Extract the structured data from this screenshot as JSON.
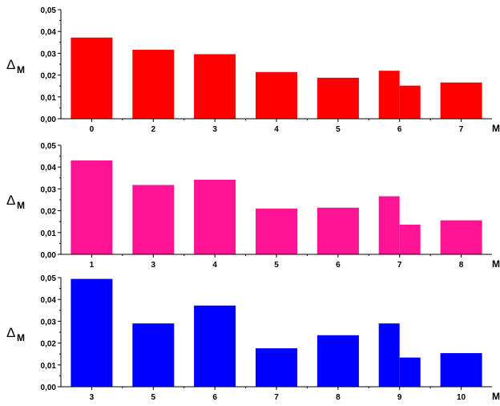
{
  "chart_data": [
    {
      "type": "bar",
      "color": "#ff0000",
      "ylabel": "Δ",
      "ylabel_sub": "M",
      "xlabel": "M",
      "ylim": [
        0,
        0.05
      ],
      "yticks": [
        "0,00",
        "0,01",
        "0,02",
        "0,03",
        "0,04",
        "0,05"
      ],
      "categories": [
        "0",
        "2",
        "3",
        "4",
        "5",
        "6",
        "7"
      ],
      "bars": [
        {
          "cat": "0",
          "value": 0.0372
        },
        {
          "cat": "2",
          "value": 0.0316
        },
        {
          "cat": "3",
          "value": 0.0296
        },
        {
          "cat": "4",
          "value": 0.0214
        },
        {
          "cat": "5",
          "value": 0.0188
        },
        {
          "cat": "6",
          "value": 0.022,
          "part": "left"
        },
        {
          "cat": "6",
          "value": 0.0152,
          "part": "right"
        },
        {
          "cat": "7",
          "value": 0.0166
        }
      ]
    },
    {
      "type": "bar",
      "color": "#ff1493",
      "ylabel": "Δ",
      "ylabel_sub": "M",
      "xlabel": "M",
      "ylim": [
        0,
        0.05
      ],
      "yticks": [
        "0,00",
        "0,01",
        "0,02",
        "0,03",
        "0,04",
        "0,05"
      ],
      "categories": [
        "1",
        "3",
        "4",
        "5",
        "6",
        "7",
        "8"
      ],
      "bars": [
        {
          "cat": "1",
          "value": 0.043
        },
        {
          "cat": "3",
          "value": 0.0318
        },
        {
          "cat": "4",
          "value": 0.0342
        },
        {
          "cat": "5",
          "value": 0.021
        },
        {
          "cat": "6",
          "value": 0.0214
        },
        {
          "cat": "7",
          "value": 0.0266,
          "part": "left"
        },
        {
          "cat": "7",
          "value": 0.0136,
          "part": "right"
        },
        {
          "cat": "8",
          "value": 0.0156
        }
      ]
    },
    {
      "type": "bar",
      "color": "#0000ff",
      "ylabel": "Δ",
      "ylabel_sub": "M",
      "xlabel": "M",
      "ylim": [
        0,
        0.05
      ],
      "yticks": [
        "0,00",
        "0,01",
        "0,02",
        "0,03",
        "0,04",
        "0,05"
      ],
      "categories": [
        "3",
        "5",
        "6",
        "7",
        "8",
        "9",
        "10"
      ],
      "bars": [
        {
          "cat": "3",
          "value": 0.0494
        },
        {
          "cat": "5",
          "value": 0.029
        },
        {
          "cat": "6",
          "value": 0.0372
        },
        {
          "cat": "7",
          "value": 0.0176
        },
        {
          "cat": "8",
          "value": 0.0236
        },
        {
          "cat": "9",
          "value": 0.029,
          "part": "left"
        },
        {
          "cat": "9",
          "value": 0.0134,
          "part": "right"
        },
        {
          "cat": "10",
          "value": 0.0154
        }
      ]
    }
  ]
}
